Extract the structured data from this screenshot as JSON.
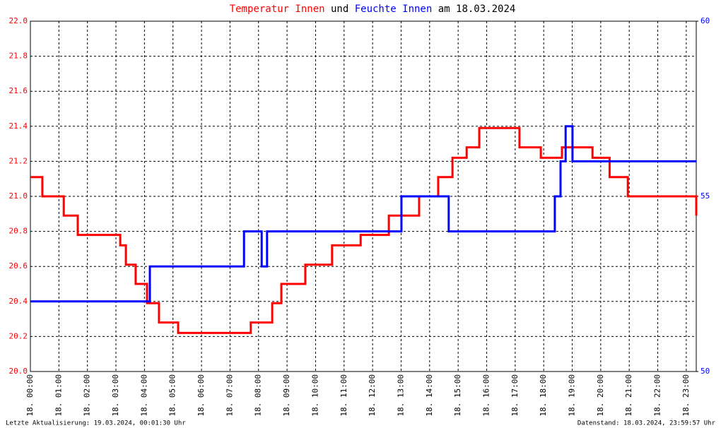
{
  "chart_data": {
    "type": "line",
    "title_connector": "und",
    "title_date": "am 18.03.2024",
    "footer_left": "Letzte Aktualisierung: 19.03.2024, 00:01:30 Uhr",
    "footer_right": "Datenstand: 18.03.2024, 23:59:57 Uhr",
    "grid": true,
    "xlim": [
      0,
      23.35
    ],
    "xticks": [
      {
        "value": 0,
        "label": "18. 00:00"
      },
      {
        "value": 1,
        "label": "18. 01:00"
      },
      {
        "value": 2,
        "label": "18. 02:00"
      },
      {
        "value": 3,
        "label": "18. 03:00"
      },
      {
        "value": 4,
        "label": "18. 04:00"
      },
      {
        "value": 5,
        "label": "18. 05:00"
      },
      {
        "value": 6,
        "label": "18. 06:00"
      },
      {
        "value": 7,
        "label": "18. 07:00"
      },
      {
        "value": 8,
        "label": "18. 08:00"
      },
      {
        "value": 9,
        "label": "18. 09:00"
      },
      {
        "value": 10,
        "label": "18. 10:00"
      },
      {
        "value": 11,
        "label": "18. 11:00"
      },
      {
        "value": 12,
        "label": "18. 12:00"
      },
      {
        "value": 13,
        "label": "18. 13:00"
      },
      {
        "value": 14,
        "label": "18. 14:00"
      },
      {
        "value": 15,
        "label": "18. 15:00"
      },
      {
        "value": 16,
        "label": "18. 16:00"
      },
      {
        "value": 17,
        "label": "18. 17:00"
      },
      {
        "value": 18,
        "label": "18. 18:00"
      },
      {
        "value": 19,
        "label": "18. 19:00"
      },
      {
        "value": 20,
        "label": "18. 20:00"
      },
      {
        "value": 21,
        "label": "18. 21:00"
      },
      {
        "value": 22,
        "label": "18. 22:00"
      },
      {
        "value": 23,
        "label": "18. 23:00"
      }
    ],
    "ylim": [
      20,
      22
    ],
    "yticks": [
      {
        "value": 20,
        "label": "20.0"
      },
      20.2,
      20.4,
      20.6,
      20.8,
      {
        "value": 21,
        "label": "21.0"
      },
      21.2,
      21.4,
      21.6,
      21.8,
      {
        "value": 22,
        "label": "22.0"
      }
    ],
    "y2lim": [
      50,
      60
    ],
    "y2ticks": [
      50,
      55,
      60
    ],
    "series": [
      {
        "name": "Temperatur Innen",
        "color": "#ff0000",
        "axis": "y",
        "x": [
          0,
          0.42,
          0.42,
          1.17,
          1.17,
          1.66,
          1.66,
          3.15,
          3.15,
          3.35,
          3.35,
          3.69,
          3.69,
          4.09,
          4.09,
          4.51,
          4.51,
          5.18,
          5.18,
          7.73,
          7.73,
          8.48,
          8.48,
          8.8,
          8.8,
          9.64,
          9.64,
          10.58,
          10.58,
          11.58,
          11.58,
          12.57,
          12.57,
          13.63,
          13.63,
          14.3,
          14.3,
          14.8,
          14.8,
          15.3,
          15.3,
          15.74,
          15.74,
          17.15,
          17.15,
          17.9,
          17.9,
          18.64,
          18.64,
          19.71,
          19.71,
          20.31,
          20.31,
          20.95,
          20.95,
          23.35,
          23.35
        ],
        "values": [
          21.11,
          21.11,
          21.0,
          21.0,
          20.89,
          20.89,
          20.78,
          20.78,
          20.72,
          20.72,
          20.61,
          20.61,
          20.5,
          20.5,
          20.39,
          20.39,
          20.28,
          20.28,
          20.22,
          20.22,
          20.28,
          20.28,
          20.39,
          20.39,
          20.5,
          20.5,
          20.61,
          20.61,
          20.72,
          20.72,
          20.78,
          20.78,
          20.89,
          20.89,
          21.0,
          21.0,
          21.11,
          21.11,
          21.22,
          21.22,
          21.28,
          21.28,
          21.39,
          21.39,
          21.28,
          21.28,
          21.22,
          21.22,
          21.28,
          21.28,
          21.22,
          21.22,
          21.11,
          21.11,
          21.0,
          21.0,
          20.89
        ]
      },
      {
        "name": "Feuchte Innen",
        "color": "#0000ff",
        "axis": "y2",
        "x": [
          0,
          4.19,
          4.19,
          7.49,
          7.49,
          8.11,
          8.11,
          8.3,
          8.3,
          13.01,
          13.01,
          14.67,
          14.67,
          18.39,
          18.39,
          18.59,
          18.59,
          18.77,
          18.77,
          19.01,
          19.01,
          23.35
        ],
        "values": [
          52,
          52,
          53,
          53,
          54,
          54,
          53,
          53,
          54,
          54,
          55,
          55,
          54,
          54,
          55,
          55,
          56,
          56,
          57,
          57,
          56,
          56
        ]
      }
    ]
  }
}
